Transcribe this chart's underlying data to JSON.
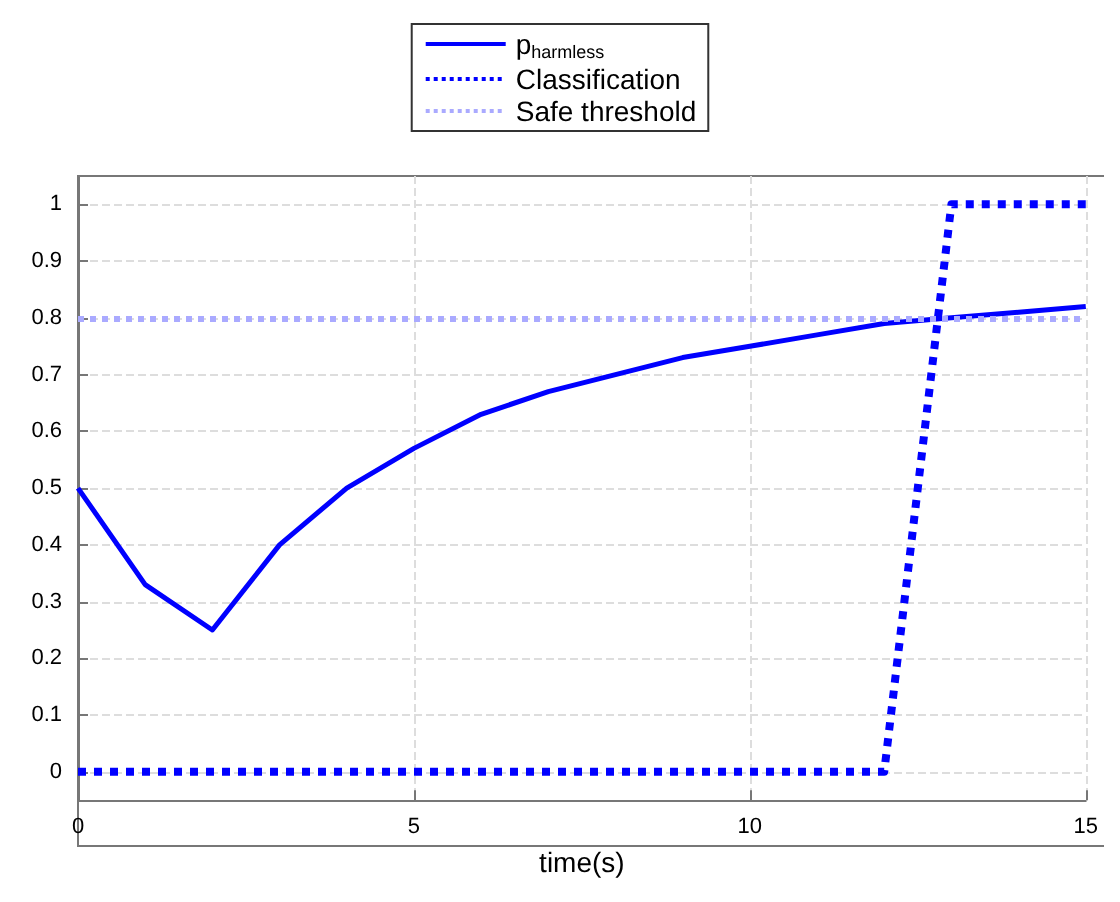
{
  "chart_data": {
    "type": "line",
    "xlabel": "time(s)",
    "x": [
      0,
      1,
      2,
      3,
      4,
      5,
      6,
      7,
      8,
      9,
      10,
      11,
      12,
      13,
      14,
      15
    ],
    "series": [
      {
        "name": "p$_{harmless}$",
        "color": "#0000ff",
        "line_style": "solid",
        "values": [
          0.5,
          0.33,
          0.25,
          0.4,
          0.5,
          0.57,
          0.63,
          0.67,
          0.7,
          0.73,
          0.75,
          0.77,
          0.79,
          0.8,
          0.81,
          0.82
        ]
      },
      {
        "name": "Classification",
        "color": "#0000ff",
        "line_style": "dotted",
        "values": [
          0,
          0,
          0,
          0,
          0,
          0,
          0,
          0,
          0,
          0,
          0,
          0,
          0,
          1,
          1,
          1
        ]
      }
    ],
    "ref_lines": [
      {
        "axis": "y",
        "value": 0.8,
        "label": "Safe threshold",
        "color": "#aaaaff",
        "line_style": "dotted"
      }
    ],
    "xlim": [
      0,
      15
    ],
    "xticks": [
      0,
      5,
      10,
      15
    ],
    "ylim": [
      -0.05,
      1.05
    ],
    "yticks": [
      0,
      0.1,
      0.2,
      0.3,
      0.4,
      0.5,
      0.6,
      0.7,
      0.8,
      0.9,
      1
    ],
    "grid": true,
    "legend": "top",
    "marker": "none"
  }
}
